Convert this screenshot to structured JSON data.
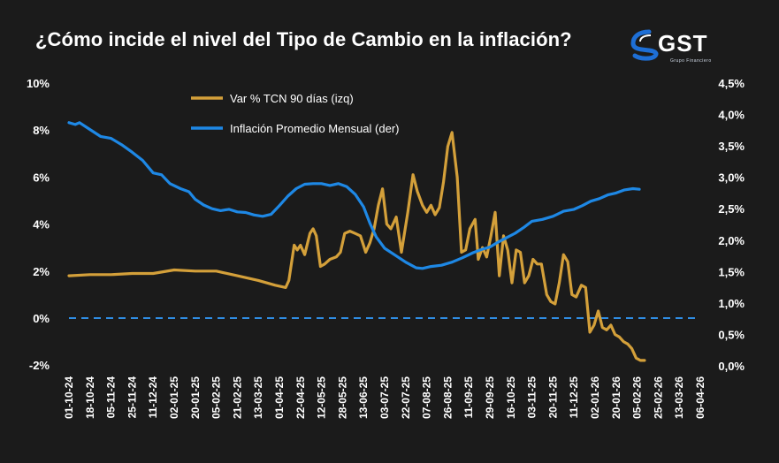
{
  "title": "¿Cómo incide el nivel del Tipo de Cambio en la inflación?",
  "logo": {
    "text": "GST",
    "subtitle": "Grupo Financiero"
  },
  "colors": {
    "background": "#1b1b1b",
    "tcn": "#d4a03a",
    "inflacion": "#1e88e5",
    "zero_line": "#2f8de4"
  },
  "chart_data": {
    "type": "line",
    "title": "¿Cómo incide el nivel del Tipo de Cambio en la inflación?",
    "x_tick_labels": [
      "01-10-24",
      "18-10-24",
      "05-11-24",
      "25-11-24",
      "11-12-24",
      "02-01-25",
      "20-01-25",
      "05-02-25",
      "21-02-25",
      "13-03-25",
      "01-04-25",
      "22-04-25",
      "12-05-25",
      "28-05-25",
      "13-06-25",
      "03-07-25",
      "22-07-25",
      "07-08-25",
      "26-08-25",
      "11-09-25",
      "29-09-25",
      "16-10-25",
      "03-11-25",
      "20-11-25",
      "11-12-25",
      "02-01-26",
      "20-01-26",
      "05-02-26",
      "25-02-26",
      "13-03-26",
      "06-04-26"
    ],
    "y_left": {
      "min": -2,
      "max": 10,
      "ticks": [
        "-2%",
        "0%",
        "2%",
        "4%",
        "6%",
        "8%",
        "10%"
      ],
      "tick_values": [
        -2,
        0,
        2,
        4,
        6,
        8,
        10
      ]
    },
    "y_right": {
      "min": 0,
      "max": 4.5,
      "ticks": [
        "0,0%",
        "0,5%",
        "1,0%",
        "1,5%",
        "2,0%",
        "2,5%",
        "3,0%",
        "3,5%",
        "4,0%",
        "4,5%"
      ],
      "tick_values": [
        0,
        0.5,
        1,
        1.5,
        2,
        2.5,
        3,
        3.5,
        4,
        4.5
      ]
    },
    "reference_line": {
      "axis": "left",
      "value": 0,
      "style": "dashed"
    },
    "legend_placement": "top-center",
    "series": [
      {
        "name": "Var % TCN 90 días (izq)",
        "axis": "left",
        "color": "#d4a03a",
        "points": [
          [
            0,
            1.8
          ],
          [
            1,
            1.85
          ],
          [
            2,
            1.85
          ],
          [
            3,
            1.9
          ],
          [
            4,
            1.9
          ],
          [
            5,
            2.05
          ],
          [
            6,
            2.0
          ],
          [
            7,
            2.0
          ],
          [
            8,
            1.8
          ],
          [
            9,
            1.6
          ],
          [
            9.8,
            1.4
          ],
          [
            10.3,
            1.3
          ],
          [
            10.45,
            1.6
          ],
          [
            10.7,
            3.1
          ],
          [
            10.85,
            2.9
          ],
          [
            11.0,
            3.1
          ],
          [
            11.2,
            2.7
          ],
          [
            11.45,
            3.6
          ],
          [
            11.6,
            3.8
          ],
          [
            11.75,
            3.5
          ],
          [
            11.95,
            2.2
          ],
          [
            12.15,
            2.3
          ],
          [
            12.4,
            2.5
          ],
          [
            12.7,
            2.6
          ],
          [
            12.9,
            2.8
          ],
          [
            13.1,
            3.6
          ],
          [
            13.35,
            3.7
          ],
          [
            13.6,
            3.6
          ],
          [
            13.85,
            3.5
          ],
          [
            14.1,
            2.8
          ],
          [
            14.3,
            3.2
          ],
          [
            14.5,
            3.8
          ],
          [
            14.7,
            4.8
          ],
          [
            14.9,
            5.5
          ],
          [
            15.1,
            4.0
          ],
          [
            15.3,
            3.8
          ],
          [
            15.55,
            4.3
          ],
          [
            15.8,
            2.8
          ],
          [
            16.1,
            4.5
          ],
          [
            16.35,
            6.1
          ],
          [
            16.55,
            5.4
          ],
          [
            16.8,
            4.8
          ],
          [
            17.0,
            4.5
          ],
          [
            17.2,
            4.8
          ],
          [
            17.4,
            4.4
          ],
          [
            17.6,
            4.7
          ],
          [
            17.8,
            5.8
          ],
          [
            18.0,
            7.3
          ],
          [
            18.2,
            7.9
          ],
          [
            18.45,
            6.0
          ],
          [
            18.65,
            2.8
          ],
          [
            18.85,
            2.9
          ],
          [
            19.05,
            3.8
          ],
          [
            19.3,
            4.2
          ],
          [
            19.45,
            2.5
          ],
          [
            19.65,
            3.0
          ],
          [
            19.85,
            2.6
          ],
          [
            20.05,
            3.5
          ],
          [
            20.25,
            4.5
          ],
          [
            20.45,
            1.8
          ],
          [
            20.65,
            3.5
          ],
          [
            20.85,
            2.9
          ],
          [
            21.05,
            1.5
          ],
          [
            21.25,
            2.9
          ],
          [
            21.45,
            2.8
          ],
          [
            21.65,
            1.5
          ],
          [
            21.85,
            1.8
          ],
          [
            22.05,
            2.5
          ],
          [
            22.25,
            2.3
          ],
          [
            22.45,
            2.3
          ],
          [
            22.7,
            1.0
          ],
          [
            22.9,
            0.7
          ],
          [
            23.1,
            0.6
          ],
          [
            23.3,
            1.5
          ],
          [
            23.5,
            2.7
          ],
          [
            23.7,
            2.4
          ],
          [
            23.9,
            1.0
          ],
          [
            24.1,
            0.9
          ],
          [
            24.35,
            1.4
          ],
          [
            24.55,
            1.3
          ],
          [
            24.75,
            -0.6
          ],
          [
            24.95,
            -0.3
          ],
          [
            25.15,
            0.3
          ],
          [
            25.35,
            -0.4
          ],
          [
            25.55,
            -0.5
          ],
          [
            25.75,
            -0.3
          ],
          [
            25.95,
            -0.7
          ],
          [
            26.15,
            -0.8
          ],
          [
            26.35,
            -1.0
          ],
          [
            26.55,
            -1.1
          ],
          [
            26.75,
            -1.3
          ],
          [
            26.95,
            -1.7
          ],
          [
            27.15,
            -1.8
          ],
          [
            27.35,
            -1.8
          ]
        ]
      },
      {
        "name": "Inflación Promedio Mensual (der)",
        "axis": "right",
        "color": "#1e88e5",
        "points": [
          [
            0,
            3.87
          ],
          [
            0.3,
            3.84
          ],
          [
            0.5,
            3.87
          ],
          [
            1,
            3.76
          ],
          [
            1.5,
            3.65
          ],
          [
            2,
            3.62
          ],
          [
            2.5,
            3.52
          ],
          [
            3,
            3.4
          ],
          [
            3.5,
            3.27
          ],
          [
            4,
            3.07
          ],
          [
            4.4,
            3.04
          ],
          [
            4.8,
            2.9
          ],
          [
            5.3,
            2.82
          ],
          [
            5.7,
            2.77
          ],
          [
            6,
            2.65
          ],
          [
            6.4,
            2.56
          ],
          [
            6.8,
            2.5
          ],
          [
            7.2,
            2.47
          ],
          [
            7.6,
            2.49
          ],
          [
            8,
            2.45
          ],
          [
            8.4,
            2.44
          ],
          [
            8.8,
            2.4
          ],
          [
            9.2,
            2.38
          ],
          [
            9.6,
            2.41
          ],
          [
            10,
            2.55
          ],
          [
            10.4,
            2.7
          ],
          [
            10.8,
            2.82
          ],
          [
            11.2,
            2.89
          ],
          [
            11.6,
            2.9
          ],
          [
            12,
            2.9
          ],
          [
            12.4,
            2.87
          ],
          [
            12.8,
            2.9
          ],
          [
            13.2,
            2.85
          ],
          [
            13.6,
            2.73
          ],
          [
            14,
            2.53
          ],
          [
            14.3,
            2.27
          ],
          [
            14.6,
            2.05
          ],
          [
            15,
            1.87
          ],
          [
            15.5,
            1.76
          ],
          [
            16,
            1.65
          ],
          [
            16.5,
            1.56
          ],
          [
            16.8,
            1.55
          ],
          [
            17.2,
            1.58
          ],
          [
            17.7,
            1.6
          ],
          [
            18.2,
            1.65
          ],
          [
            18.7,
            1.72
          ],
          [
            19.2,
            1.8
          ],
          [
            19.6,
            1.85
          ],
          [
            20,
            1.89
          ],
          [
            20.4,
            1.97
          ],
          [
            20.8,
            2.04
          ],
          [
            21.2,
            2.11
          ],
          [
            21.6,
            2.2
          ],
          [
            22,
            2.3
          ],
          [
            22.5,
            2.33
          ],
          [
            23,
            2.38
          ],
          [
            23.5,
            2.46
          ],
          [
            24,
            2.49
          ],
          [
            24.4,
            2.55
          ],
          [
            24.8,
            2.62
          ],
          [
            25.2,
            2.66
          ],
          [
            25.6,
            2.72
          ],
          [
            26,
            2.75
          ],
          [
            26.4,
            2.8
          ],
          [
            26.8,
            2.82
          ],
          [
            27.1,
            2.81
          ]
        ]
      }
    ]
  }
}
